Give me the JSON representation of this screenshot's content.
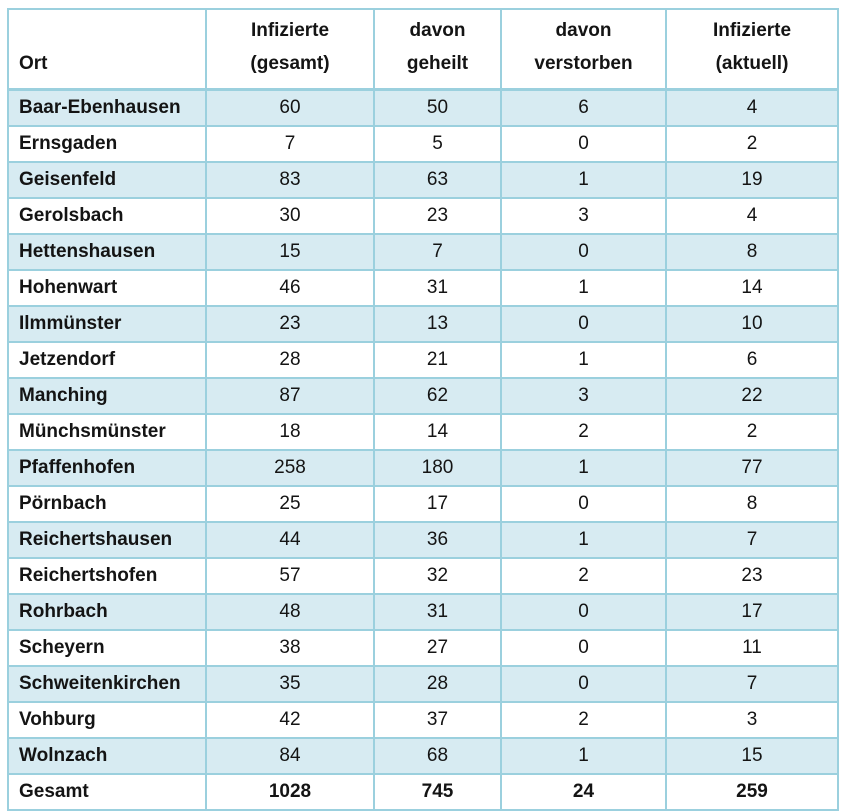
{
  "colors": {
    "border": "#9bd0de",
    "row_shaded": "#d7ebf2",
    "row_plain": "#ffffff",
    "text": "#141414"
  },
  "table": {
    "columns": [
      {
        "line1": "Ort",
        "line2": ""
      },
      {
        "line1": "Infizierte",
        "line2": "(gesamt)"
      },
      {
        "line1": "davon",
        "line2": "geheilt"
      },
      {
        "line1": "davon",
        "line2": "verstorben"
      },
      {
        "line1": "Infizierte",
        "line2": "(aktuell)"
      }
    ]
  },
  "chart_data": {
    "type": "table",
    "columns": [
      "Ort",
      "Infizierte (gesamt)",
      "davon geheilt",
      "davon verstorben",
      "Infizierte (aktuell)"
    ],
    "rows": [
      [
        "Baar-Ebenhausen",
        60,
        50,
        6,
        4
      ],
      [
        "Ernsgaden",
        7,
        5,
        0,
        2
      ],
      [
        "Geisenfeld",
        83,
        63,
        1,
        19
      ],
      [
        "Gerolsbach",
        30,
        23,
        3,
        4
      ],
      [
        "Hettenshausen",
        15,
        7,
        0,
        8
      ],
      [
        "Hohenwart",
        46,
        31,
        1,
        14
      ],
      [
        "Ilmmünster",
        23,
        13,
        0,
        10
      ],
      [
        "Jetzendorf",
        28,
        21,
        1,
        6
      ],
      [
        "Manching",
        87,
        62,
        3,
        22
      ],
      [
        "Münchsmünster",
        18,
        14,
        2,
        2
      ],
      [
        "Pfaffenhofen",
        258,
        180,
        1,
        77
      ],
      [
        "Pörnbach",
        25,
        17,
        0,
        8
      ],
      [
        "Reichertshausen",
        44,
        36,
        1,
        7
      ],
      [
        "Reichertshofen",
        57,
        32,
        2,
        23
      ],
      [
        "Rohrbach",
        48,
        31,
        0,
        17
      ],
      [
        "Scheyern",
        38,
        27,
        0,
        11
      ],
      [
        "Schweitenkirchen",
        35,
        28,
        0,
        7
      ],
      [
        "Vohburg",
        42,
        37,
        2,
        3
      ],
      [
        "Wolnzach",
        84,
        68,
        1,
        15
      ]
    ],
    "total_row": [
      "Gesamt",
      1028,
      745,
      24,
      259
    ],
    "layout": {
      "shaded_row_indices": "even",
      "first_column_align": "left",
      "value_columns_align": "center"
    }
  }
}
